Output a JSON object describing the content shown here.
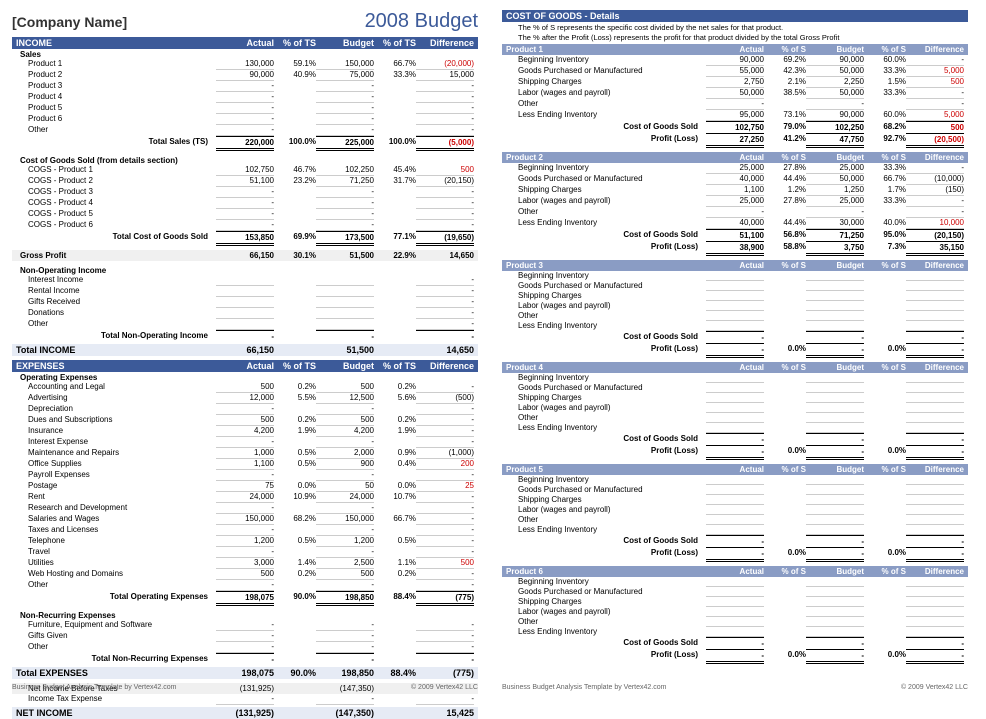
{
  "company": "[Company Name]",
  "title": "2008 Budget",
  "footer_left": "Business Budget Analysis Template by Vertex42.com",
  "footer_right": "© 2009 Vertex42 LLC",
  "cols": {
    "actual": "Actual",
    "pts": "% of TS",
    "budget": "Budget",
    "diff": "Difference",
    "ps": "% of S"
  },
  "income_hdr": "INCOME",
  "sales_hdr": "Sales",
  "sales": [
    {
      "l": "Product 1",
      "a": "130,000",
      "ap": "59.1%",
      "b": "150,000",
      "bp": "66.7%",
      "d": "(20,000)",
      "dn": true
    },
    {
      "l": "Product 2",
      "a": "90,000",
      "ap": "40.9%",
      "b": "75,000",
      "bp": "33.3%",
      "d": "15,000"
    },
    {
      "l": "Product 3",
      "a": "-",
      "ap": "",
      "b": "-",
      "bp": "",
      "d": "-"
    },
    {
      "l": "Product 4",
      "a": "-",
      "ap": "",
      "b": "-",
      "bp": "",
      "d": "-"
    },
    {
      "l": "Product 5",
      "a": "-",
      "ap": "",
      "b": "-",
      "bp": "",
      "d": "-"
    },
    {
      "l": "Product 6",
      "a": "-",
      "ap": "",
      "b": "-",
      "bp": "",
      "d": "-"
    },
    {
      "l": "Other",
      "a": "-",
      "ap": "",
      "b": "-",
      "bp": "",
      "d": "-"
    }
  ],
  "sales_tot": {
    "l": "Total Sales (TS)",
    "a": "220,000",
    "ap": "100.0%",
    "b": "225,000",
    "bp": "100.0%",
    "d": "(5,000)",
    "dn": true
  },
  "cogs_hdr": "Cost of Goods Sold (from details section)",
  "cogs": [
    {
      "l": "COGS - Product 1",
      "a": "102,750",
      "ap": "46.7%",
      "b": "102,250",
      "bp": "45.4%",
      "d": "500",
      "dn": true
    },
    {
      "l": "COGS - Product 2",
      "a": "51,100",
      "ap": "23.2%",
      "b": "71,250",
      "bp": "31.7%",
      "d": "(20,150)"
    },
    {
      "l": "COGS - Product 3",
      "a": "-",
      "ap": "",
      "b": "-",
      "bp": "",
      "d": "-"
    },
    {
      "l": "COGS - Product 4",
      "a": "-",
      "ap": "",
      "b": "-",
      "bp": "",
      "d": "-"
    },
    {
      "l": "COGS - Product 5",
      "a": "-",
      "ap": "",
      "b": "-",
      "bp": "",
      "d": "-"
    },
    {
      "l": "COGS - Product 6",
      "a": "-",
      "ap": "",
      "b": "-",
      "bp": "",
      "d": "-"
    }
  ],
  "cogs_tot": {
    "l": "Total Cost of Goods Sold",
    "a": "153,850",
    "ap": "69.9%",
    "b": "173,500",
    "bp": "77.1%",
    "d": "(19,650)"
  },
  "gross": {
    "l": "Gross Profit",
    "a": "66,150",
    "ap": "30.1%",
    "b": "51,500",
    "bp": "22.9%",
    "d": "14,650"
  },
  "nonop_hdr": "Non-Operating Income",
  "nonop": [
    {
      "l": "Interest Income"
    },
    {
      "l": "Rental Income"
    },
    {
      "l": "Gifts Received"
    },
    {
      "l": "Donations"
    },
    {
      "l": "Other"
    }
  ],
  "nonop_tot": {
    "l": "Total Non-Operating Income",
    "a": "-",
    "b": "-",
    "d": "-"
  },
  "income_tot": {
    "l": "Total INCOME",
    "a": "66,150",
    "b": "51,500",
    "d": "14,650"
  },
  "exp_hdr": "EXPENSES",
  "opex_hdr": "Operating Expenses",
  "opex": [
    {
      "l": "Accounting and Legal",
      "a": "500",
      "ap": "0.2%",
      "b": "500",
      "bp": "0.2%",
      "d": "-"
    },
    {
      "l": "Advertising",
      "a": "12,000",
      "ap": "5.5%",
      "b": "12,500",
      "bp": "5.6%",
      "d": "(500)"
    },
    {
      "l": "Depreciation",
      "a": "-",
      "ap": "",
      "b": "-",
      "bp": "",
      "d": "-"
    },
    {
      "l": "Dues and Subscriptions",
      "a": "500",
      "ap": "0.2%",
      "b": "500",
      "bp": "0.2%",
      "d": "-"
    },
    {
      "l": "Insurance",
      "a": "4,200",
      "ap": "1.9%",
      "b": "4,200",
      "bp": "1.9%",
      "d": "-"
    },
    {
      "l": "Interest Expense",
      "a": "-",
      "ap": "",
      "b": "-",
      "bp": "",
      "d": "-"
    },
    {
      "l": "Maintenance and Repairs",
      "a": "1,000",
      "ap": "0.5%",
      "b": "2,000",
      "bp": "0.9%",
      "d": "(1,000)"
    },
    {
      "l": "Office Supplies",
      "a": "1,100",
      "ap": "0.5%",
      "b": "900",
      "bp": "0.4%",
      "d": "200",
      "dn": true
    },
    {
      "l": "Payroll Expenses",
      "a": "-",
      "ap": "",
      "b": "-",
      "bp": "",
      "d": "-"
    },
    {
      "l": "Postage",
      "a": "75",
      "ap": "0.0%",
      "b": "50",
      "bp": "0.0%",
      "d": "25",
      "dn": true
    },
    {
      "l": "Rent",
      "a": "24,000",
      "ap": "10.9%",
      "b": "24,000",
      "bp": "10.7%",
      "d": "-"
    },
    {
      "l": "Research and Development",
      "a": "-",
      "ap": "",
      "b": "-",
      "bp": "",
      "d": "-"
    },
    {
      "l": "Salaries and Wages",
      "a": "150,000",
      "ap": "68.2%",
      "b": "150,000",
      "bp": "66.7%",
      "d": "-"
    },
    {
      "l": "Taxes and Licenses",
      "a": "-",
      "ap": "",
      "b": "-",
      "bp": "",
      "d": "-"
    },
    {
      "l": "Telephone",
      "a": "1,200",
      "ap": "0.5%",
      "b": "1,200",
      "bp": "0.5%",
      "d": "-"
    },
    {
      "l": "Travel",
      "a": "-",
      "ap": "",
      "b": "-",
      "bp": "",
      "d": "-"
    },
    {
      "l": "Utilities",
      "a": "3,000",
      "ap": "1.4%",
      "b": "2,500",
      "bp": "1.1%",
      "d": "500",
      "dn": true
    },
    {
      "l": "Web Hosting and Domains",
      "a": "500",
      "ap": "0.2%",
      "b": "500",
      "bp": "0.2%",
      "d": "-"
    },
    {
      "l": "Other",
      "a": "-",
      "ap": "",
      "b": "-",
      "bp": "",
      "d": "-"
    }
  ],
  "opex_tot": {
    "l": "Total Operating Expenses",
    "a": "198,075",
    "ap": "90.0%",
    "b": "198,850",
    "bp": "88.4%",
    "d": "(775)"
  },
  "nrex_hdr": "Non-Recurring Expenses",
  "nrex": [
    {
      "l": "Furniture, Equipment and Software"
    },
    {
      "l": "Gifts Given"
    },
    {
      "l": "Other"
    }
  ],
  "nrex_tot": {
    "l": "Total Non-Recurring Expenses",
    "a": "-",
    "b": "-",
    "d": "-"
  },
  "exp_tot": {
    "l": "Total EXPENSES",
    "a": "198,075",
    "ap": "90.0%",
    "b": "198,850",
    "bp": "88.4%",
    "d": "(775)"
  },
  "nibt": {
    "l": "Net Income Before Taxes",
    "a": "(131,925)",
    "b": "(147,350)",
    "d": ""
  },
  "itax": {
    "l": "Income Tax Expense",
    "a": "-",
    "b": "-",
    "d": "-"
  },
  "net": {
    "l": "NET INCOME",
    "a": "(131,925)",
    "b": "(147,350)",
    "d": "15,425"
  },
  "cog_title": "COST OF GOODS - Details",
  "note1": "The % of S represents the specific cost divided by the net sales for that product.",
  "note2": "The % after the Profit (Loss) represents the profit for that product divided by the total Gross Profit",
  "cog_rows": [
    "Beginning Inventory",
    "Goods Purchased or Manufactured",
    "Shipping Charges",
    "Labor (wages and payroll)",
    "Other",
    "Less Ending Inventory"
  ],
  "cog_sold": "Cost of Goods Sold",
  "cog_pl": "Profit (Loss)",
  "products": [
    {
      "name": "Product 1",
      "rows": [
        {
          "a": "90,000",
          "ap": "69.2%",
          "b": "90,000",
          "bp": "60.0%",
          "d": "-"
        },
        {
          "a": "55,000",
          "ap": "42.3%",
          "b": "50,000",
          "bp": "33.3%",
          "d": "5,000",
          "dn": true
        },
        {
          "a": "2,750",
          "ap": "2.1%",
          "b": "2,250",
          "bp": "1.5%",
          "d": "500",
          "dn": true
        },
        {
          "a": "50,000",
          "ap": "38.5%",
          "b": "50,000",
          "bp": "33.3%",
          "d": "-"
        },
        {
          "a": "-",
          "ap": "",
          "b": "-",
          "bp": "",
          "d": "-"
        },
        {
          "a": "95,000",
          "ap": "73.1%",
          "b": "90,000",
          "bp": "60.0%",
          "d": "5,000",
          "dn": true
        }
      ],
      "sold": {
        "a": "102,750",
        "ap": "79.0%",
        "b": "102,250",
        "bp": "68.2%",
        "d": "500",
        "dn": true
      },
      "pl": {
        "a": "27,250",
        "ap": "41.2%",
        "b": "47,750",
        "bp": "92.7%",
        "d": "(20,500)",
        "dn": true
      }
    },
    {
      "name": "Product 2",
      "rows": [
        {
          "a": "25,000",
          "ap": "27.8%",
          "b": "25,000",
          "bp": "33.3%",
          "d": "-"
        },
        {
          "a": "40,000",
          "ap": "44.4%",
          "b": "50,000",
          "bp": "66.7%",
          "d": "(10,000)"
        },
        {
          "a": "1,100",
          "ap": "1.2%",
          "b": "1,250",
          "bp": "1.7%",
          "d": "(150)"
        },
        {
          "a": "25,000",
          "ap": "27.8%",
          "b": "25,000",
          "bp": "33.3%",
          "d": "-"
        },
        {
          "a": "-",
          "ap": "",
          "b": "-",
          "bp": "",
          "d": "-"
        },
        {
          "a": "40,000",
          "ap": "44.4%",
          "b": "30,000",
          "bp": "40.0%",
          "d": "10,000",
          "dn": true
        }
      ],
      "sold": {
        "a": "51,100",
        "ap": "56.8%",
        "b": "71,250",
        "bp": "95.0%",
        "d": "(20,150)"
      },
      "pl": {
        "a": "38,900",
        "ap": "58.8%",
        "b": "3,750",
        "bp": "7.3%",
        "d": "35,150"
      }
    },
    {
      "name": "Product 3",
      "empty": true,
      "sold": {
        "a": "-",
        "ap": "",
        "b": "-",
        "bp": "",
        "d": "-"
      },
      "pl": {
        "a": "-",
        "ap": "0.0%",
        "b": "-",
        "bp": "0.0%",
        "d": "-"
      }
    },
    {
      "name": "Product 4",
      "empty": true,
      "sold": {
        "a": "-",
        "ap": "",
        "b": "-",
        "bp": "",
        "d": "-"
      },
      "pl": {
        "a": "-",
        "ap": "0.0%",
        "b": "-",
        "bp": "0.0%",
        "d": "-"
      }
    },
    {
      "name": "Product 5",
      "empty": true,
      "sold": {
        "a": "-",
        "ap": "",
        "b": "-",
        "bp": "",
        "d": "-"
      },
      "pl": {
        "a": "-",
        "ap": "0.0%",
        "b": "-",
        "bp": "0.0%",
        "d": "-"
      }
    },
    {
      "name": "Product 6",
      "empty": true,
      "sold": {
        "a": "-",
        "ap": "",
        "b": "-",
        "bp": "",
        "d": "-"
      },
      "pl": {
        "a": "-",
        "ap": "0.0%",
        "b": "-",
        "bp": "0.0%",
        "d": "-"
      }
    }
  ]
}
